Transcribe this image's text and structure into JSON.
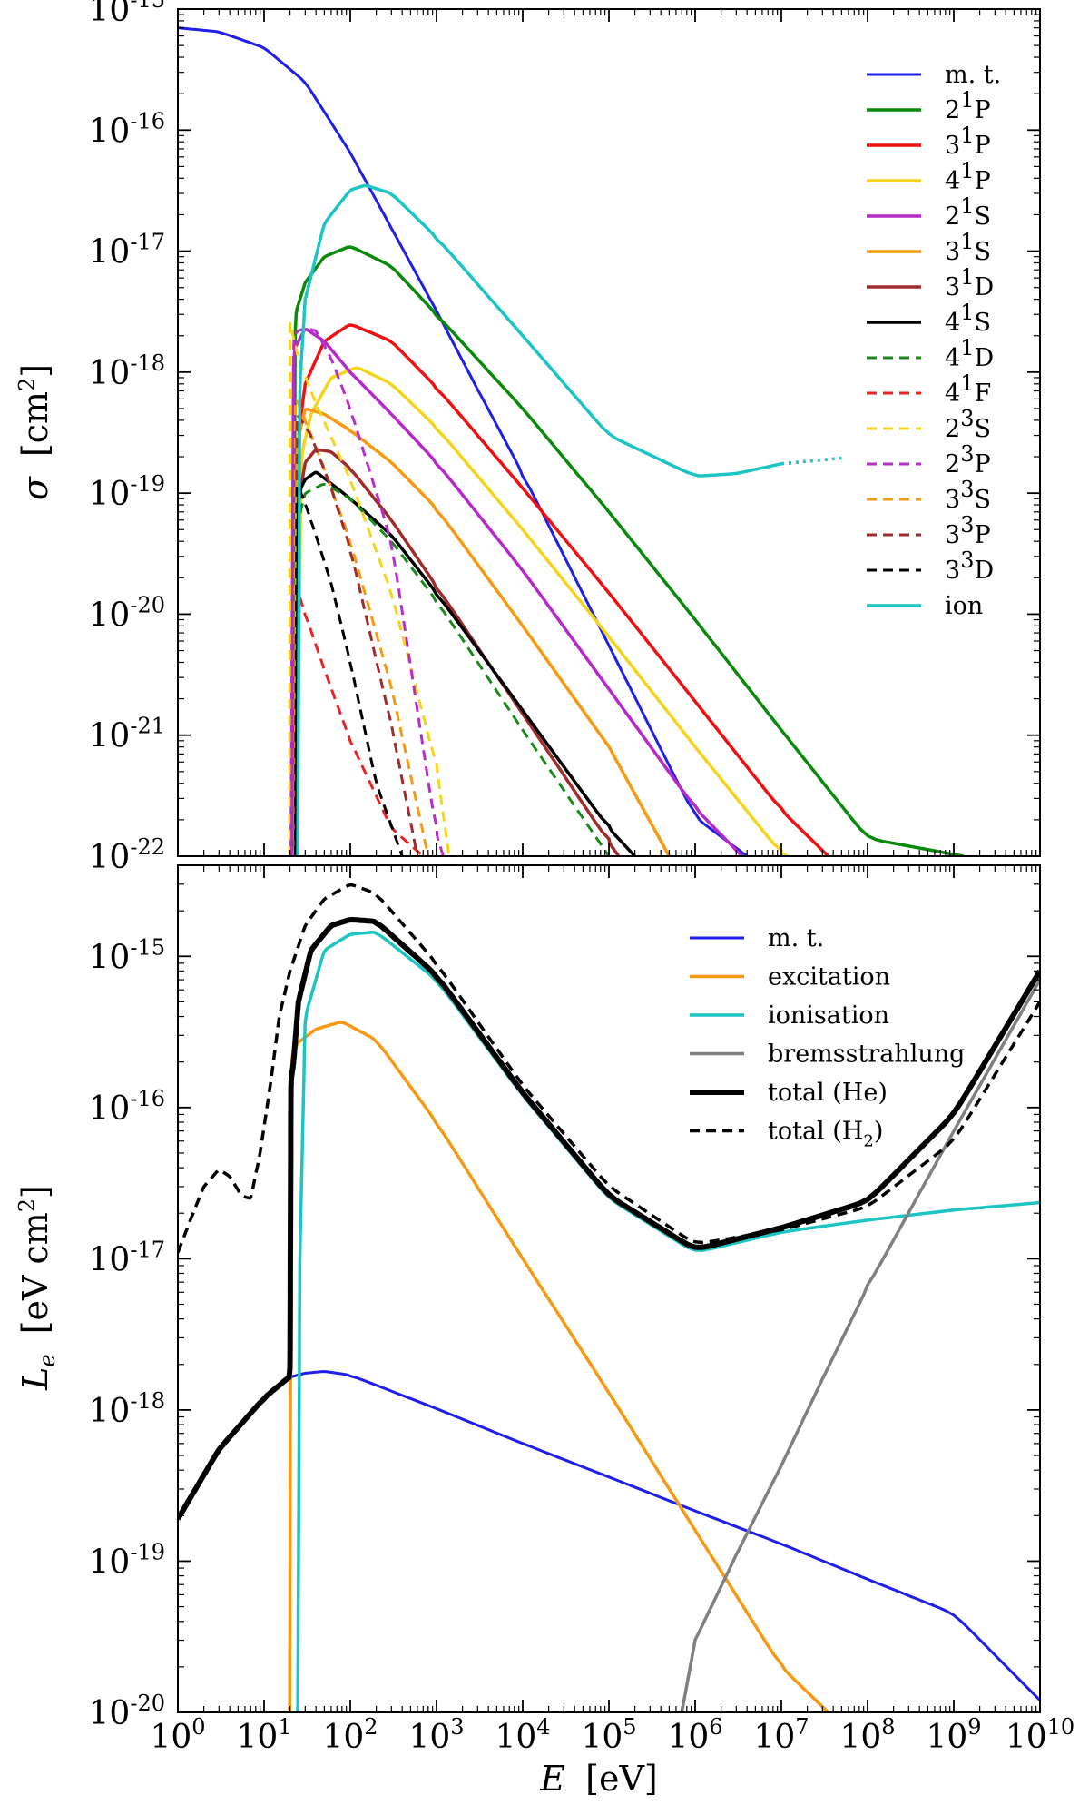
{
  "chart_data": [
    {
      "type": "line",
      "panel": "top",
      "xscale": "log",
      "yscale": "log",
      "xlim": [
        1,
        10000000000
      ],
      "ylim": [
        1e-22,
        1e-15
      ],
      "ylabel": "σ",
      "ylabel_unit": "[cm",
      "ylabel_unit_exp": "2",
      "ylabel_unit_close": "]",
      "ytick_values": [
        1e-22,
        1e-21,
        1e-20,
        1e-19,
        1e-18,
        1e-17,
        1e-16,
        1e-15
      ],
      "ytick_base": "10",
      "ytick_exponents": [
        "-22",
        "-21",
        "-20",
        "-19",
        "-18",
        "-17",
        "-16",
        "-15"
      ],
      "legend_position": "top-right",
      "series": [
        {
          "name": "m.t.",
          "label_main": "m. t.",
          "color": "#1f1fe8",
          "dash": "solid",
          "width": 3,
          "x": [
            1,
            3,
            10,
            30,
            100,
            300,
            1000,
            3000,
            10000,
            100000,
            1000000,
            4000000
          ],
          "y": [
            7e-16,
            6.5e-16,
            4.8e-16,
            2.5e-16,
            6.5e-17,
            1.55e-17,
            3.2e-18,
            7.2e-19,
            1.45e-19,
            5.5e-21,
            2.1e-22,
            1e-22
          ]
        },
        {
          "name": "2¹P",
          "label_main": "2",
          "label_sup": "1",
          "label_tail": "P",
          "color": "#0a8a0a",
          "dash": "solid",
          "width": 3.5,
          "x": [
            21.5,
            23,
            30,
            50,
            100,
            300,
            1000,
            10000,
            100000,
            1000000,
            10000000,
            100000000,
            1300000000
          ],
          "y": [
            1e-22,
            3e-18,
            5.5e-18,
            9e-18,
            1.1e-17,
            7.5e-18,
            3e-18,
            5e-19,
            7e-20,
            9e-21,
            1.1e-21,
            1.4e-22,
            1e-22
          ]
        },
        {
          "name": "3¹P",
          "label_main": "3",
          "label_sup": "1",
          "label_tail": "P",
          "color": "#ee1111",
          "dash": "solid",
          "width": 3.5,
          "x": [
            23,
            25,
            30,
            50,
            100,
            300,
            1000,
            10000,
            100000,
            1000000,
            10000000,
            35000000
          ],
          "y": [
            1e-22,
            3e-19,
            8e-19,
            1.8e-18,
            2.5e-18,
            1.8e-18,
            7.5e-19,
            1.1e-19,
            1.5e-20,
            1.9e-21,
            2.4e-22,
            1e-22
          ]
        },
        {
          "name": "4¹P",
          "label_main": "4",
          "label_sup": "1",
          "label_tail": "P",
          "color": "#f4d41c",
          "dash": "solid",
          "width": 3.5,
          "x": [
            23.8,
            27,
            35,
            60,
            120,
            300,
            1000,
            10000,
            100000,
            1000000,
            10000000,
            12000000
          ],
          "y": [
            1e-22,
            2e-19,
            4.5e-19,
            9e-19,
            1.1e-18,
            8e-19,
            3.5e-19,
            5e-20,
            6.5e-21,
            8e-22,
            1.05e-22,
            1e-22
          ]
        },
        {
          "name": "2¹S",
          "label_main": "2",
          "label_sup": "1",
          "label_tail": "S",
          "color": "#b52ac8",
          "dash": "solid",
          "width": 3.5,
          "x": [
            20.6,
            22,
            30,
            50,
            100,
            300,
            1000,
            10000,
            100000,
            1000000,
            3500000
          ],
          "y": [
            1e-22,
            1.5e-18,
            2.3e-18,
            1.8e-18,
            1e-18,
            4.5e-19,
            1.8e-19,
            2.3e-20,
            2.4e-21,
            2.5e-22,
            1e-22
          ]
        },
        {
          "name": "3¹S",
          "label_main": "3",
          "label_sup": "1",
          "label_tail": "S",
          "color": "#f59a12",
          "dash": "solid",
          "width": 3.5,
          "x": [
            22.9,
            24,
            30,
            50,
            100,
            300,
            1000,
            10000,
            100000,
            500000
          ],
          "y": [
            1e-22,
            2.5e-19,
            5e-19,
            4.5e-19,
            3.3e-19,
            1.8e-19,
            7.5e-20,
            8e-21,
            8e-22,
            1e-22
          ]
        },
        {
          "name": "3¹D",
          "label_main": "3",
          "label_sup": "1",
          "label_tail": "D",
          "color": "#a02c2c",
          "dash": "solid",
          "width": 3.5,
          "x": [
            23.1,
            25,
            30,
            40,
            60,
            100,
            300,
            1000,
            10000,
            100000,
            130000
          ],
          "y": [
            1e-22,
            8e-20,
            1.8e-19,
            2.3e-19,
            2.2e-19,
            1.6e-19,
            6e-20,
            1.7e-20,
            1.5e-21,
            1.3e-22,
            1e-22
          ]
        },
        {
          "name": "4¹S",
          "label_main": "4",
          "label_sup": "1",
          "label_tail": "S",
          "color": "#000000",
          "dash": "solid",
          "width": 3.5,
          "x": [
            23.7,
            25,
            30,
            40,
            60,
            100,
            300,
            1000,
            10000,
            100000,
            200000
          ],
          "y": [
            1e-22,
            1e-19,
            1.3e-19,
            1.5e-19,
            1.2e-19,
            9e-20,
            4.5e-20,
            1.5e-20,
            1.6e-21,
            1.7e-22,
            1e-22
          ]
        },
        {
          "name": "4¹D",
          "label_main": "4",
          "label_sup": "1",
          "label_tail": "D",
          "color": "#1a8a1a",
          "dash": "dashed",
          "width": 3,
          "x": [
            23.7,
            25,
            30,
            50,
            100,
            300,
            1000,
            10000,
            100000
          ],
          "y": [
            1e-22,
            6e-20,
            1e-19,
            1.2e-19,
            9e-20,
            4e-20,
            1.3e-20,
            1.1e-21,
            1e-22
          ]
        },
        {
          "name": "4¹F",
          "label_main": "4",
          "label_sup": "1",
          "label_tail": "F",
          "color": "#ee2222",
          "dash": "dashed",
          "width": 3,
          "x": [
            23.7,
            25,
            30,
            50,
            100,
            300,
            700
          ],
          "y": [
            1e-22,
            1.5e-20,
            1e-20,
            3.5e-21,
            9e-22,
            1.7e-22,
            1e-22
          ]
        },
        {
          "name": "2³S",
          "label_main": "2",
          "label_sup": "3",
          "label_tail": "S",
          "color": "#f8d51a",
          "dash": "dashed",
          "width": 3,
          "x": [
            19.8,
            20,
            21,
            25,
            40,
            100,
            300,
            1000,
            1400
          ],
          "y": [
            1e-22,
            2.6e-18,
            2.2e-18,
            1.3e-18,
            5.5e-19,
            1.3e-19,
            1.5e-20,
            5.5e-22,
            1e-22
          ]
        },
        {
          "name": "2³P",
          "label_main": "2",
          "label_sup": "3",
          "label_tail": "P",
          "color": "#b82ec8",
          "dash": "dashed",
          "width": 3,
          "x": [
            20.96,
            22,
            25,
            30,
            40,
            60,
            100,
            300,
            1000,
            1200
          ],
          "y": [
            1e-22,
            2e-18,
            2.2e-18,
            2.3e-18,
            2.2e-18,
            1.3e-18,
            5e-19,
            4e-20,
            1.5e-22,
            1e-22
          ]
        },
        {
          "name": "3³S",
          "label_main": "3",
          "label_sup": "3",
          "label_tail": "S",
          "color": "#f59a12",
          "dash": "dashed",
          "width": 3,
          "x": [
            22.7,
            23,
            25,
            30,
            50,
            100,
            300,
            800
          ],
          "y": [
            1e-22,
            6e-19,
            5.5e-19,
            4e-19,
            1.6e-19,
            4e-20,
            2.5e-21,
            1e-22
          ]
        },
        {
          "name": "3³P",
          "label_main": "3",
          "label_sup": "3",
          "label_tail": "P",
          "color": "#a02c2c",
          "dash": "dashed",
          "width": 3,
          "x": [
            23,
            24,
            27,
            35,
            60,
            100,
            300,
            600
          ],
          "y": [
            1e-22,
            4.5e-19,
            4e-19,
            3e-19,
            1.1e-19,
            3.5e-20,
            1.2e-21,
            1e-22
          ]
        },
        {
          "name": "3³D",
          "label_main": "3",
          "label_sup": "3",
          "label_tail": "D",
          "color": "#000000",
          "dash": "dashed",
          "width": 3,
          "x": [
            23.07,
            24,
            27,
            35,
            60,
            100,
            200,
            400
          ],
          "y": [
            1e-22,
            1.2e-19,
            1e-19,
            6e-20,
            1.8e-20,
            4e-21,
            4e-22,
            1e-22
          ]
        },
        {
          "name": "ion",
          "label_main": "ion",
          "color": "#1cc4c4",
          "dash": "solid",
          "width": 3.5,
          "x": [
            24.6,
            26,
            30,
            50,
            100,
            150,
            300,
            1000,
            10000,
            100000,
            1000000,
            3000000,
            10000000
          ],
          "y": [
            1e-22,
            8e-19,
            4e-18,
            1.7e-17,
            3.2e-17,
            3.5e-17,
            3e-17,
            1.3e-17,
            2e-18,
            3e-19,
            1.38e-19,
            1.45e-19,
            1.75e-19
          ]
        },
        {
          "name": "ion-extrapolated",
          "color": "#1cc4c4",
          "dash": "dotted",
          "width": 3.5,
          "legend": false,
          "x": [
            10000000,
            50000000
          ],
          "y": [
            1.75e-19,
            1.95e-19
          ]
        }
      ]
    },
    {
      "type": "line",
      "panel": "bottom",
      "xscale": "log",
      "yscale": "log",
      "xlim": [
        1,
        10000000000
      ],
      "ylim": [
        1e-20,
        4e-15
      ],
      "xlabel": "E",
      "xlabel_unit": "[eV]",
      "ylabel": "L",
      "ylabel_sub": "e",
      "ylabel_unit": "[eV cm",
      "ylabel_unit_exp": "2",
      "ylabel_unit_close": "]",
      "ytick_values": [
        1e-20,
        1e-19,
        1e-18,
        1e-17,
        1e-16,
        1e-15
      ],
      "ytick_base": "10",
      "ytick_exponents": [
        "-20",
        "-19",
        "-18",
        "-17",
        "-16",
        "-15"
      ],
      "xtick_values": [
        1,
        10,
        100,
        1000,
        10000,
        100000,
        1000000,
        10000000,
        100000000,
        1000000000,
        10000000000
      ],
      "xtick_base": "10",
      "xtick_exponents": [
        "0",
        "1",
        "2",
        "3",
        "4",
        "5",
        "6",
        "7",
        "8",
        "9",
        "10"
      ],
      "legend_position": "top-right",
      "series": [
        {
          "name": "m.t.",
          "label_main": "m. t.",
          "color": "#1f1fe8",
          "dash": "solid",
          "width": 3,
          "x": [
            20,
            30,
            50,
            100,
            1000,
            10000,
            100000,
            1000000,
            10000000,
            100000000,
            1000000000,
            10000000000
          ],
          "y": [
            1.65e-18,
            1.75e-18,
            1.8e-18,
            1.7e-18,
            1.02e-18,
            6e-19,
            3.6e-19,
            2.15e-19,
            1.3e-19,
            7.6e-20,
            4.5e-20,
            1.2e-20
          ]
        },
        {
          "name": "excitation",
          "label_main": "excitation",
          "color": "#f59a12",
          "dash": "solid",
          "width": 3.5,
          "x": [
            19.8,
            20.2,
            21,
            25,
            40,
            80,
            200,
            1000,
            10000,
            100000,
            1000000,
            10000000,
            35000000
          ],
          "y": [
            1e-20,
            1e-18,
            2.2e-16,
            2.7e-16,
            3.3e-16,
            3.7e-16,
            2.8e-16,
            8e-17,
            1e-17,
            1.3e-18,
            1.6e-19,
            2e-20,
            1e-20
          ]
        },
        {
          "name": "ionisation",
          "label_main": "ionisation",
          "color": "#1cc4c4",
          "dash": "solid",
          "width": 3.5,
          "x": [
            24.6,
            26,
            30,
            50,
            100,
            200,
            1000,
            10000,
            100000,
            1000000,
            10000000,
            100000000,
            1000000000,
            10000000000
          ],
          "y": [
            1e-20,
            1e-17,
            4e-16,
            1.1e-15,
            1.4e-15,
            1.45e-15,
            7e-16,
            1.2e-16,
            2.5e-17,
            1.1e-17,
            1.5e-17,
            1.8e-17,
            2.1e-17,
            2.35e-17
          ]
        },
        {
          "name": "bremsstrahlung",
          "label_main": "bremsstrahlung",
          "color": "#808080",
          "dash": "solid",
          "width": 3.5,
          "x": [
            700000,
            1000000,
            3000000,
            10000000,
            30000000,
            100000000,
            1000000000,
            10000000000
          ],
          "y": [
            1e-20,
            3e-20,
            1.1e-19,
            4.3e-19,
            1.6e-18,
            6.5e-18,
            7e-17,
            7e-16
          ]
        },
        {
          "name": "total (He)",
          "label_main": "total (He)",
          "color": "#000000",
          "dash": "solid",
          "width": 6,
          "x": [
            1,
            3,
            10,
            19.5,
            20,
            20.5,
            22,
            25,
            35,
            60,
            100,
            200,
            1000,
            10000,
            100000,
            1000000,
            10000000,
            100000000,
            1000000000,
            10000000000
          ],
          "y": [
            1.9e-19,
            5.5e-19,
            1.2e-18,
            1.65e-18,
            1.9e-18,
            1.5e-16,
            2e-16,
            5e-16,
            1.1e-15,
            1.6e-15,
            1.75e-15,
            1.7e-15,
            7.5e-16,
            1.25e-16,
            2.6e-17,
            1.15e-17,
            1.6e-17,
            2.4e-17,
            9e-17,
            8e-16
          ]
        },
        {
          "name": "total (H₂)",
          "label_main": "total (H",
          "label_sub": "2",
          "label_tail": ")",
          "color": "#000000",
          "dash": "dashed",
          "width": 3.5,
          "x": [
            1,
            1.5,
            2,
            3,
            4,
            5.5,
            7,
            9,
            12,
            15,
            20,
            30,
            50,
            100,
            200,
            1000,
            10000,
            100000,
            1000000,
            10000000,
            100000000,
            1000000000,
            10000000000
          ],
          "y": [
            1.1e-17,
            2e-17,
            3e-17,
            3.9e-17,
            3.5e-17,
            2.6e-17,
            2.5e-17,
            5e-17,
            1.5e-16,
            4e-16,
            8e-16,
            1.6e-15,
            2.4e-15,
            3e-15,
            2.6e-15,
            9e-16,
            1.4e-16,
            3e-17,
            1.25e-17,
            1.55e-17,
            2.2e-17,
            6e-17,
            5e-16
          ]
        }
      ]
    }
  ]
}
